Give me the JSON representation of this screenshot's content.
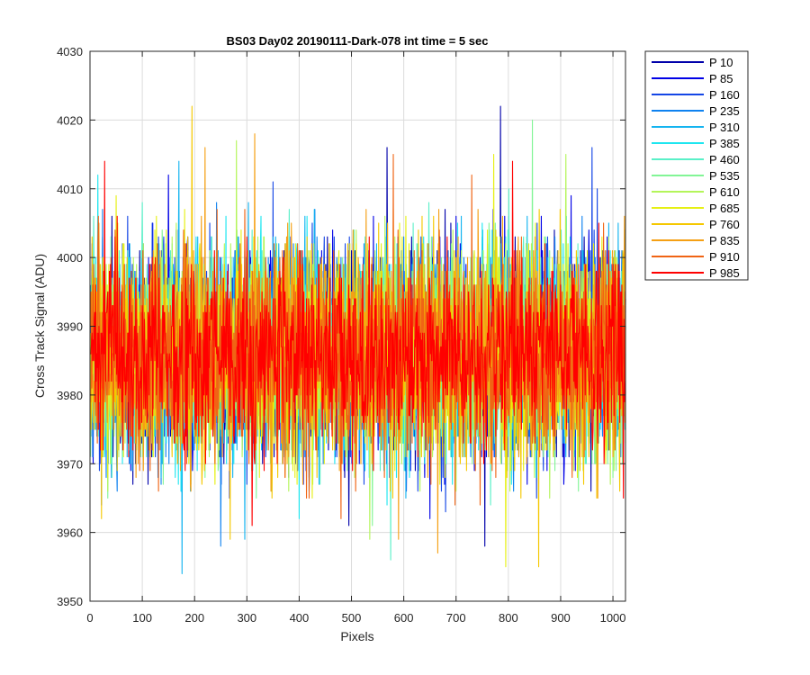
{
  "chart_data": {
    "type": "line",
    "title": "BS03 Day02 20190111-Dark-078 int time = 5 sec",
    "xlabel": "Pixels",
    "ylabel": "Cross Track Signal (ADU)",
    "xlim": [
      0,
      1024
    ],
    "ylim": [
      3950,
      4030
    ],
    "x_ticks": [
      0,
      100,
      200,
      300,
      400,
      500,
      600,
      700,
      800,
      900,
      1000
    ],
    "y_ticks": [
      3950,
      3960,
      3970,
      3980,
      3990,
      4000,
      4010,
      4020,
      4030
    ],
    "grid": true,
    "legend_position": "outside-top-right",
    "series": [
      {
        "name": "P 10",
        "color": "#0000AA",
        "mean": 3986,
        "noise": 7.5,
        "spikes": [
          {
            "x": 785,
            "y": 4022
          },
          {
            "x": 568,
            "y": 4016
          },
          {
            "x": 495,
            "y": 3961
          },
          {
            "x": 755,
            "y": 3958
          }
        ]
      },
      {
        "name": "P 85",
        "color": "#0000E6",
        "mean": 3986,
        "noise": 7.5,
        "spikes": [
          {
            "x": 150,
            "y": 4012
          },
          {
            "x": 650,
            "y": 3962
          },
          {
            "x": 920,
            "y": 4009
          }
        ]
      },
      {
        "name": "P 160",
        "color": "#1446E6",
        "mean": 3986,
        "noise": 7.5,
        "spikes": [
          {
            "x": 350,
            "y": 4011
          },
          {
            "x": 960,
            "y": 4016
          },
          {
            "x": 680,
            "y": 3963
          }
        ]
      },
      {
        "name": "P 235",
        "color": "#0F82F0",
        "mean": 3986,
        "noise": 7.5,
        "spikes": [
          {
            "x": 250,
            "y": 3958
          },
          {
            "x": 430,
            "y": 4007
          }
        ]
      },
      {
        "name": "P 310",
        "color": "#14B4F0",
        "mean": 3986,
        "noise": 7.5,
        "spikes": [
          {
            "x": 176,
            "y": 3954
          },
          {
            "x": 170,
            "y": 4014
          },
          {
            "x": 296,
            "y": 3959
          }
        ]
      },
      {
        "name": "P 385",
        "color": "#1EE6F0",
        "mean": 3986,
        "noise": 7.5,
        "spikes": [
          {
            "x": 15,
            "y": 4012
          },
          {
            "x": 400,
            "y": 3962
          }
        ]
      },
      {
        "name": "P 460",
        "color": "#5AF0C8",
        "mean": 3986,
        "noise": 7.5,
        "spikes": [
          {
            "x": 575,
            "y": 3956
          },
          {
            "x": 100,
            "y": 4008
          }
        ]
      },
      {
        "name": "P 535",
        "color": "#82F596",
        "mean": 3986,
        "noise": 7.5,
        "spikes": [
          {
            "x": 846,
            "y": 4020
          },
          {
            "x": 540,
            "y": 3961
          }
        ]
      },
      {
        "name": "P 610",
        "color": "#B4F55A",
        "mean": 3986,
        "noise": 7.5,
        "spikes": [
          {
            "x": 280,
            "y": 4017
          },
          {
            "x": 910,
            "y": 4015
          },
          {
            "x": 535,
            "y": 3959
          }
        ]
      },
      {
        "name": "P 685",
        "color": "#E6F014",
        "mean": 3986,
        "noise": 7.5,
        "spikes": [
          {
            "x": 795,
            "y": 3955
          },
          {
            "x": 772,
            "y": 4015
          },
          {
            "x": 50,
            "y": 4009
          }
        ]
      },
      {
        "name": "P 760",
        "color": "#F5C800",
        "mean": 3986,
        "noise": 7.5,
        "spikes": [
          {
            "x": 195,
            "y": 4022
          },
          {
            "x": 858,
            "y": 3955
          },
          {
            "x": 22,
            "y": 3962
          },
          {
            "x": 268,
            "y": 3959
          }
        ]
      },
      {
        "name": "P 835",
        "color": "#F5A014",
        "mean": 3986,
        "noise": 7.5,
        "spikes": [
          {
            "x": 315,
            "y": 4018
          },
          {
            "x": 220,
            "y": 4016
          },
          {
            "x": 665,
            "y": 3957
          },
          {
            "x": 590,
            "y": 3959
          }
        ]
      },
      {
        "name": "P 910",
        "color": "#F06414",
        "mean": 3986,
        "noise": 7.5,
        "spikes": [
          {
            "x": 580,
            "y": 4015
          },
          {
            "x": 730,
            "y": 4012
          },
          {
            "x": 480,
            "y": 3962
          }
        ]
      },
      {
        "name": "P 985",
        "color": "#FF0000",
        "mean": 3986,
        "noise": 7.0,
        "spikes": [
          {
            "x": 28,
            "y": 4014
          },
          {
            "x": 808,
            "y": 4014
          },
          {
            "x": 310,
            "y": 3961
          },
          {
            "x": 1020,
            "y": 3965
          }
        ]
      }
    ]
  }
}
